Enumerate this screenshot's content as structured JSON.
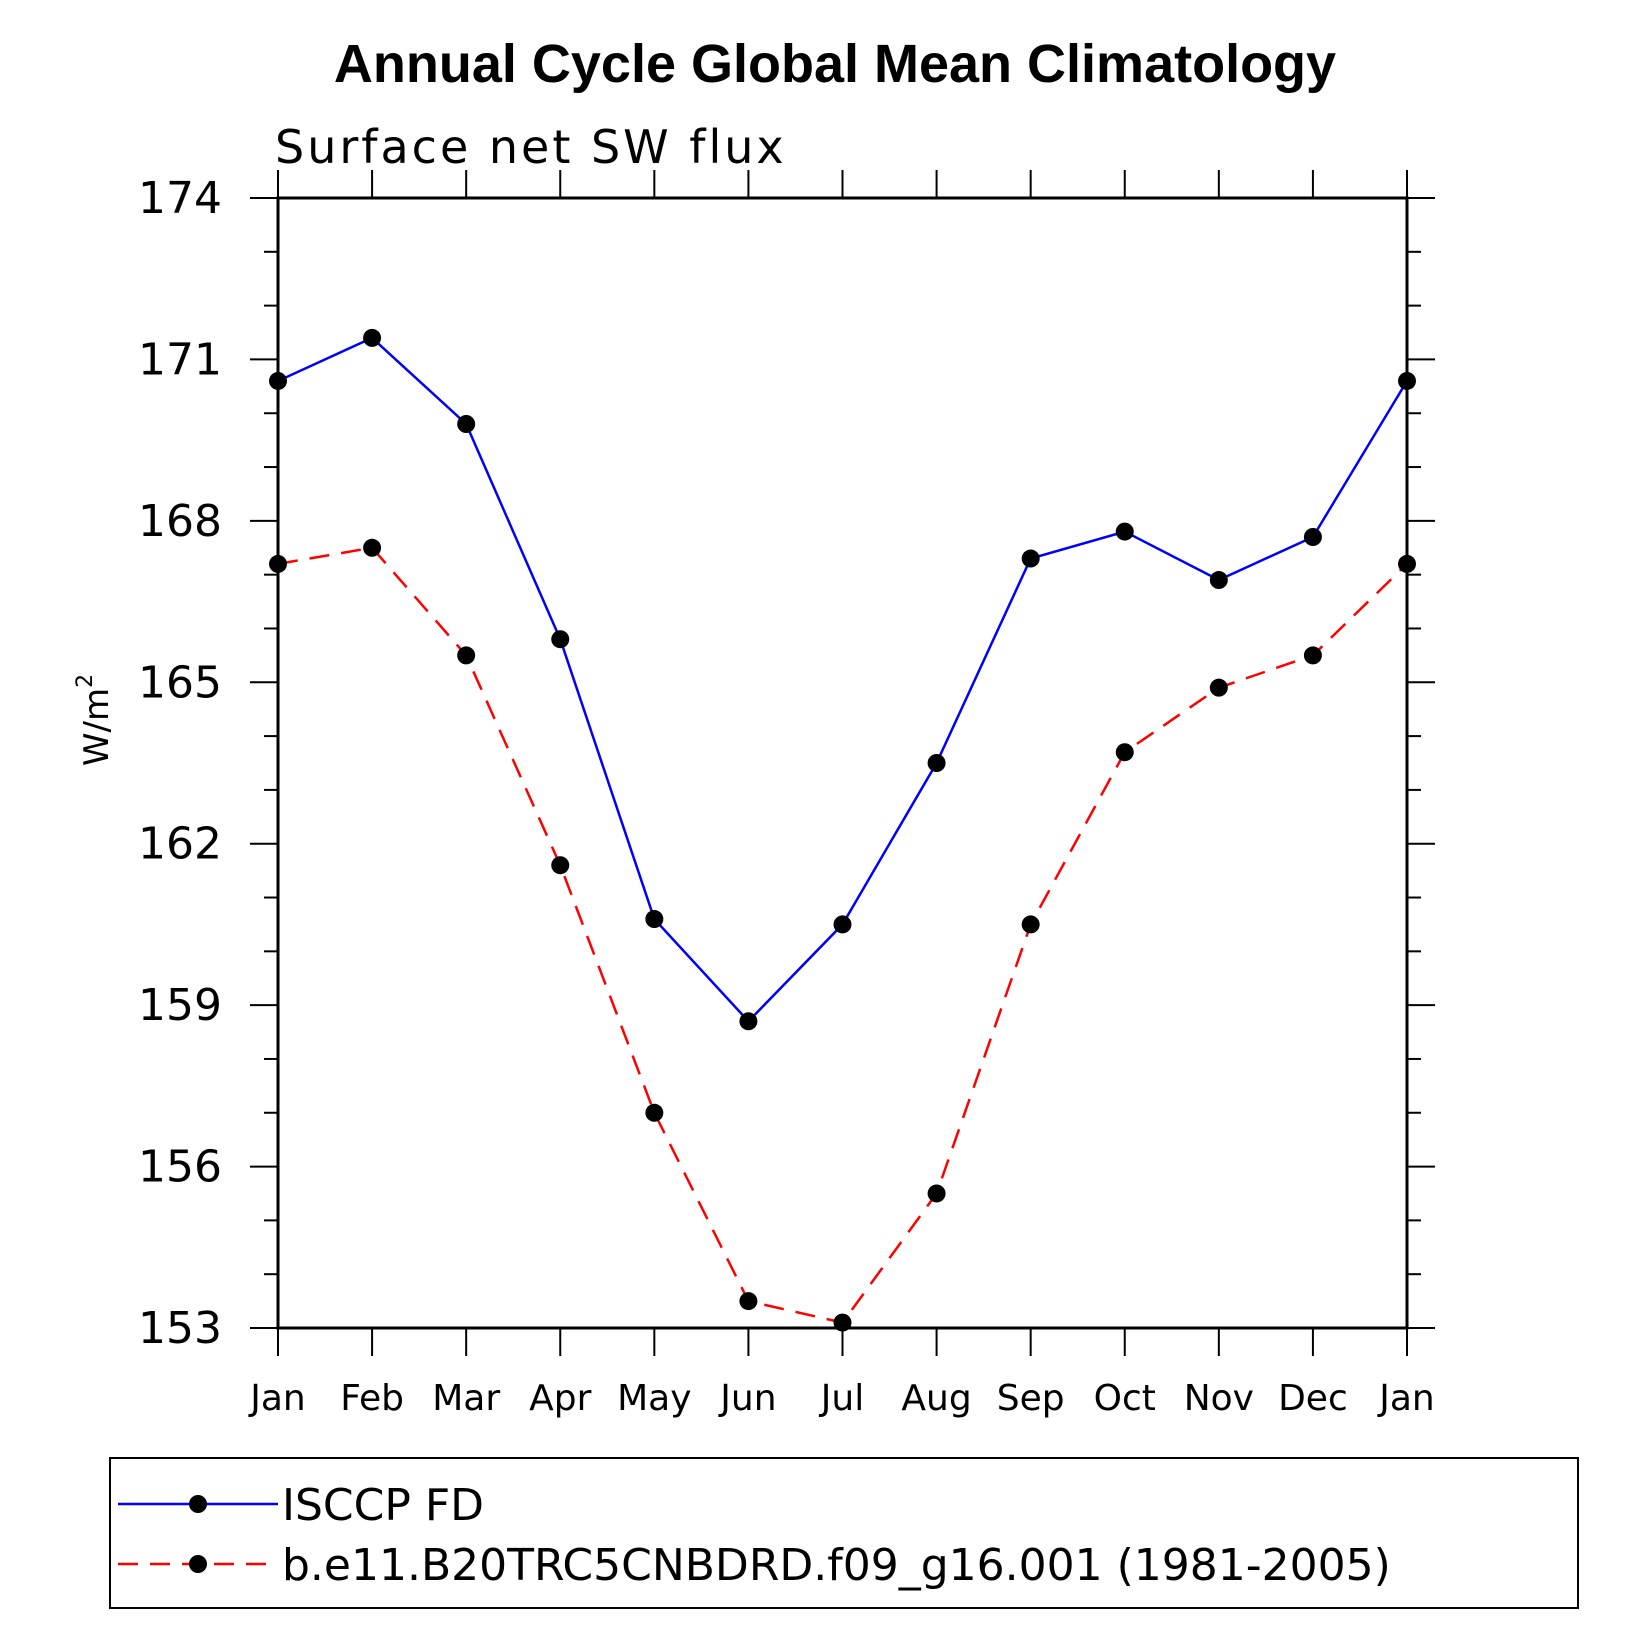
{
  "chart_data": {
    "type": "line",
    "title": "Annual Cycle Global Mean Climatology",
    "subtitle": "Surface net SW flux",
    "ylabel": "W/m",
    "ylabel_superscript": "2",
    "xlabel": "",
    "categories": [
      "Jan",
      "Feb",
      "Mar",
      "Apr",
      "May",
      "Jun",
      "Jul",
      "Aug",
      "Sep",
      "Oct",
      "Nov",
      "Dec",
      "Jan"
    ],
    "ylim": [
      153,
      174
    ],
    "yticks": [
      "174",
      "171",
      "168",
      "165",
      "162",
      "159",
      "156",
      "153"
    ],
    "grid": false,
    "legend_position": "bottom",
    "series": [
      {
        "name": "ISCCP FD",
        "color": "#0000ff",
        "line_style": "solid",
        "marker": "filled-circle",
        "values": [
          170.6,
          171.4,
          169.8,
          165.8,
          160.6,
          158.7,
          160.5,
          163.5,
          167.3,
          167.8,
          166.9,
          167.7,
          170.6
        ]
      },
      {
        "name": "b.e11.B20TRC5CNBDRD.f09_g16.001 (1981-2005)",
        "color": "#ff0000",
        "line_style": "dashed",
        "marker": "filled-circle",
        "values": [
          167.2,
          167.5,
          165.5,
          161.6,
          157.0,
          153.5,
          153.1,
          155.5,
          160.5,
          163.7,
          164.9,
          165.5,
          167.2
        ]
      }
    ]
  }
}
